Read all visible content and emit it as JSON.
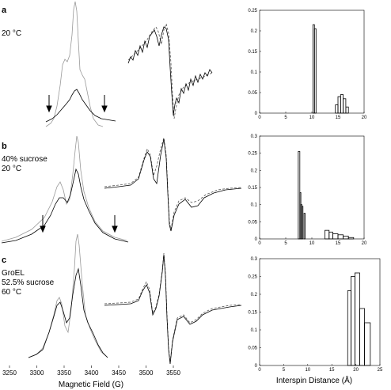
{
  "panels": [
    {
      "letter": "a",
      "conditions": [
        "20 °C"
      ],
      "histogram": {
        "type": "bar",
        "xlim": [
          0,
          20
        ],
        "ylim": [
          0,
          0.25
        ],
        "xticks": [
          0,
          5,
          10,
          15,
          20
        ],
        "yticks": [
          0,
          0.05,
          0.1,
          0.15,
          0.2,
          0.25
        ],
        "ytick_labels": [
          "0",
          "0.05",
          "0.1",
          "0.15",
          "0.2",
          "0.25"
        ],
        "bins": [
          {
            "x0": 10.2,
            "x1": 10.5,
            "h": 0.215
          },
          {
            "x0": 10.5,
            "x1": 10.8,
            "h": 0.205
          },
          {
            "x0": 14.5,
            "x1": 15.0,
            "h": 0.02
          },
          {
            "x0": 15.0,
            "x1": 15.5,
            "h": 0.04
          },
          {
            "x0": 15.5,
            "x1": 16.0,
            "h": 0.045
          },
          {
            "x0": 16.0,
            "x1": 16.5,
            "h": 0.035
          },
          {
            "x0": 16.5,
            "x1": 17.0,
            "h": 0.015
          }
        ]
      }
    },
    {
      "letter": "b",
      "conditions": [
        "40% sucrose",
        "20 °C"
      ],
      "histogram": {
        "type": "bar",
        "xlim": [
          0,
          20
        ],
        "ylim": [
          0,
          0.3
        ],
        "xticks": [
          0,
          5,
          10,
          15,
          20
        ],
        "yticks": [
          0,
          0.05,
          0.1,
          0.15,
          0.2,
          0.25,
          0.3
        ],
        "ytick_labels": [
          "0",
          "0.05",
          "0.1",
          "0.15",
          "0.2",
          "0.25",
          "0.3"
        ],
        "bins": [
          {
            "x0": 7.4,
            "x1": 7.7,
            "h": 0.255
          },
          {
            "x0": 7.7,
            "x1": 7.9,
            "h": 0.135
          },
          {
            "x0": 7.9,
            "x1": 8.1,
            "h": 0.1
          },
          {
            "x0": 8.1,
            "x1": 8.3,
            "h": 0.095
          },
          {
            "x0": 8.5,
            "x1": 8.7,
            "h": 0.075
          },
          {
            "x0": 12.5,
            "x1": 13.3,
            "h": 0.025
          },
          {
            "x0": 13.3,
            "x1": 14.0,
            "h": 0.02
          },
          {
            "x0": 14.0,
            "x1": 15.0,
            "h": 0.015
          },
          {
            "x0": 15.0,
            "x1": 16.0,
            "h": 0.012
          },
          {
            "x0": 16.0,
            "x1": 17.0,
            "h": 0.008
          },
          {
            "x0": 17.0,
            "x1": 18.0,
            "h": 0.004
          }
        ]
      }
    },
    {
      "letter": "c",
      "conditions": [
        "GroEL",
        "52.5% sucrose",
        "60 °C"
      ],
      "histogram": {
        "type": "bar",
        "xlim": [
          0,
          25
        ],
        "ylim": [
          0,
          0.3
        ],
        "xticks": [
          0,
          5,
          10,
          15,
          20,
          25
        ],
        "yticks": [
          0,
          0.05,
          0.1,
          0.15,
          0.2,
          0.25,
          0.3
        ],
        "ytick_labels": [
          "0",
          "0.05",
          "0.1",
          "0.15",
          "0.2",
          "0.25",
          "0.3"
        ],
        "bins": [
          {
            "x0": 18.3,
            "x1": 19.0,
            "h": 0.21
          },
          {
            "x0": 19.0,
            "x1": 19.8,
            "h": 0.25
          },
          {
            "x0": 19.8,
            "x1": 20.8,
            "h": 0.26
          },
          {
            "x0": 20.8,
            "x1": 21.8,
            "h": 0.16
          },
          {
            "x0": 21.8,
            "x1": 23.0,
            "h": 0.12
          }
        ]
      }
    }
  ],
  "bottom_axis": {
    "xlabel": "Magnetic Field (G)",
    "xlim": [
      3250,
      3550
    ],
    "ticks": [
      3250,
      3300,
      3350,
      3400,
      3450,
      3500,
      3550
    ]
  },
  "histogram_xlabel": "Interspin Distance (Å)",
  "colors": {
    "line": "#000000",
    "simulation": "#999999",
    "dashed": "#555555"
  }
}
